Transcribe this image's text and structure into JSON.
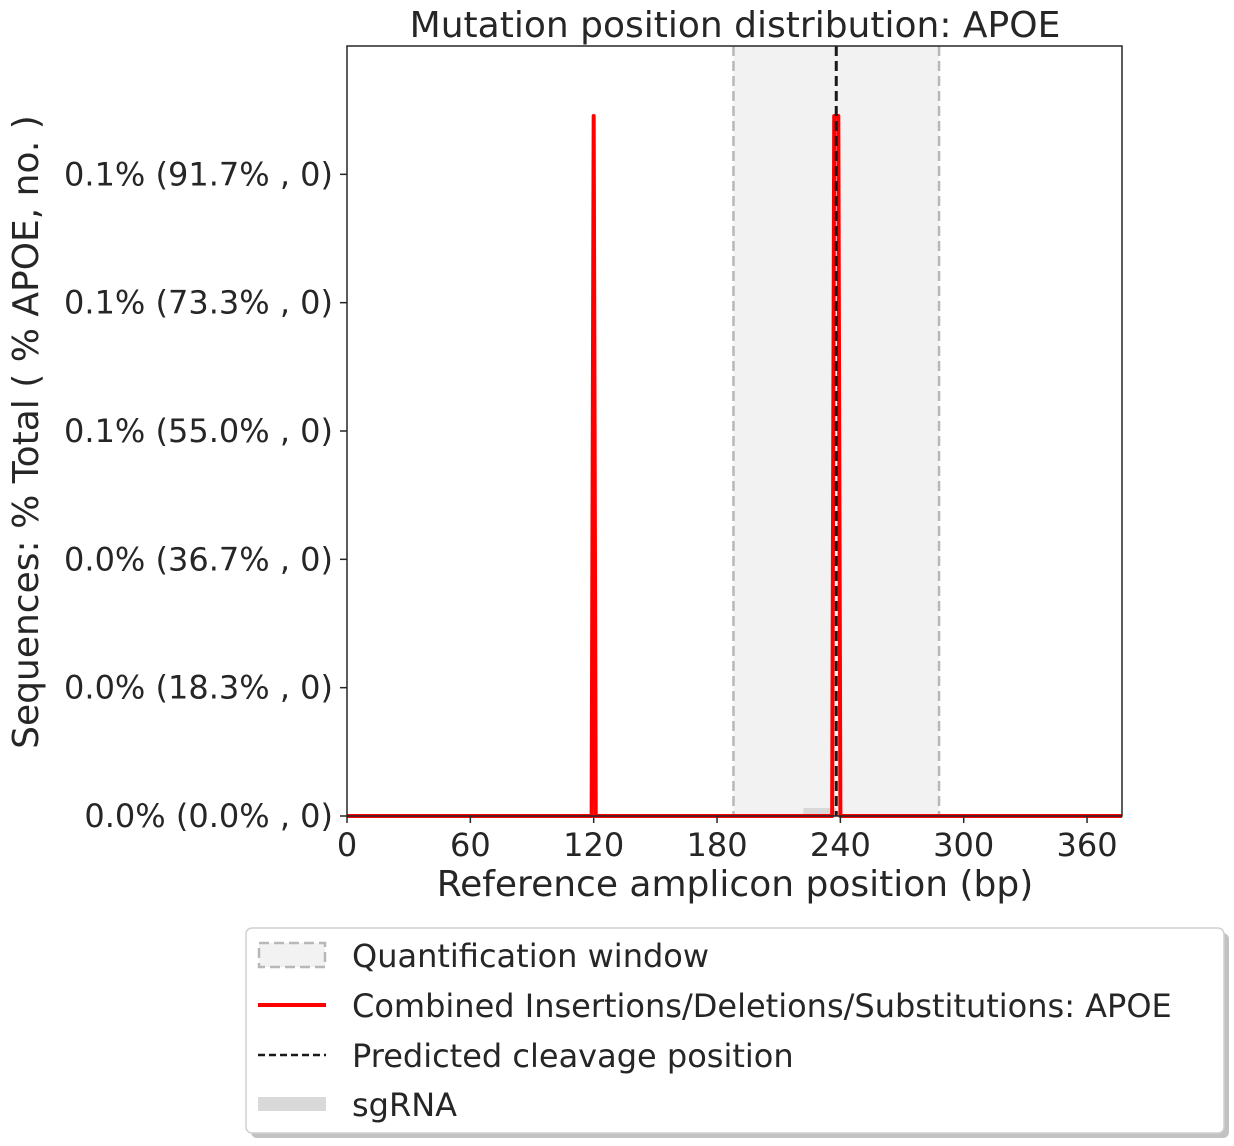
{
  "chart_data": {
    "type": "line",
    "title": "Mutation position distribution: APOE",
    "xlabel": "Reference amplicon position (bp)",
    "ylabel": "Sequences: % Total ( % APOE, no. )",
    "xlim": [
      0,
      377
    ],
    "ylim": [
      0,
      1.2
    ],
    "xticks": [
      0,
      60,
      120,
      180,
      240,
      300,
      360
    ],
    "yticks": [
      {
        "value": 0.0,
        "label": "0.0% (0.0% , 0)"
      },
      {
        "value": 0.2,
        "label": "0.0% (18.3% , 0)"
      },
      {
        "value": 0.4,
        "label": "0.0% (36.7% , 0)"
      },
      {
        "value": 0.6,
        "label": "0.1% (55.0% , 0)"
      },
      {
        "value": 0.8,
        "label": "0.1% (73.3% , 0)"
      },
      {
        "value": 1.0,
        "label": "0.1% (91.7% , 0)"
      }
    ],
    "quantification_window": [
      188,
      288
    ],
    "predicted_cleavage": 238,
    "sgrna": [
      222,
      238
    ],
    "series": [
      {
        "name": "Combined Insertions/Deletions/Substitutions: APOE",
        "color": "#ff0000",
        "x": [
          0,
          119,
          120,
          121,
          236,
          237,
          238,
          239,
          240,
          377
        ],
        "y": [
          0,
          0,
          1.091,
          0,
          0,
          1.091,
          1.091,
          1.091,
          0,
          0
        ]
      }
    ],
    "legend": {
      "placement": "below-right",
      "entries": [
        {
          "label": "Quantification window",
          "kind": "window"
        },
        {
          "label": "Combined Insertions/Deletions/Substitutions: APOE",
          "kind": "line"
        },
        {
          "label": "Predicted cleavage position",
          "kind": "dashed"
        },
        {
          "label": "sgRNA",
          "kind": "sgrna"
        }
      ]
    },
    "colors": {
      "series": "#ff0000",
      "window_fill": "#f2f2f2",
      "window_edge": "#b8b8b8",
      "cleavage": "#1a1a1a",
      "sgrna": "#d9d9d9"
    }
  }
}
